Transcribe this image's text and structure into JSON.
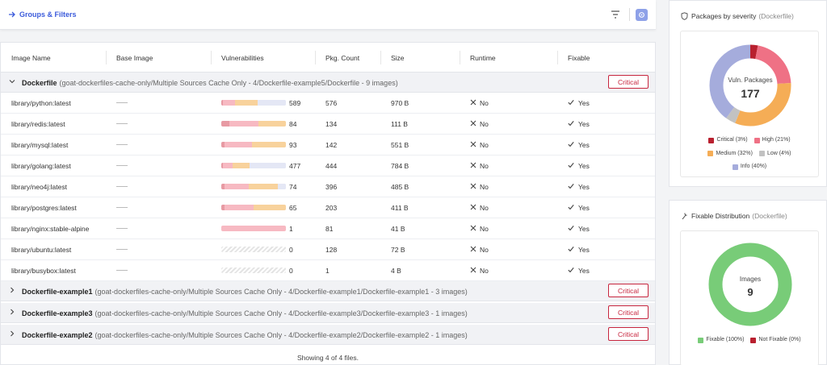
{
  "toolbar": {
    "groups_filters_label": "Groups & Filters"
  },
  "table": {
    "columns": [
      "Image Name",
      "Base Image",
      "Vulnerabilities",
      "Pkg. Count",
      "Size",
      "Runtime",
      "Fixable"
    ],
    "groups": [
      {
        "name": "Dockerfile",
        "path": "(goat-dockerfiles-cache-only/Multiple Sources Cache Only - 4/Dockerfile-example5/Dockerfile - 9 images)",
        "badge": "Critical",
        "expanded": true
      },
      {
        "name": "Dockerfile-example1",
        "path": "(goat-dockerfiles-cache-only/Multiple Sources Cache Only - 4/Dockerfile-example1/Dockerfile-example1 - 3 images)",
        "badge": "Critical",
        "expanded": false
      },
      {
        "name": "Dockerfile-example3",
        "path": "(goat-dockerfiles-cache-only/Multiple Sources Cache Only - 4/Dockerfile-example3/Dockerfile-example3 - 1 images)",
        "badge": "Critical",
        "expanded": false
      },
      {
        "name": "Dockerfile-example2",
        "path": "(goat-dockerfiles-cache-only/Multiple Sources Cache Only - 4/Dockerfile-example2/Dockerfile-example2 - 1 images)",
        "badge": "Critical",
        "expanded": false
      }
    ],
    "rows": [
      {
        "image": "library/python:latest",
        "vulns": "589",
        "pkg": "576",
        "size": "970 B",
        "runtime": "No",
        "fixable": "Yes",
        "bar": [
          0.03,
          0.18,
          0.35,
          0.0,
          0.44
        ]
      },
      {
        "image": "library/redis:latest",
        "vulns": "84",
        "pkg": "134",
        "size": "111 B",
        "runtime": "No",
        "fixable": "Yes",
        "bar": [
          0.12,
          0.45,
          0.43,
          0.0,
          0.0
        ]
      },
      {
        "image": "library/mysql:latest",
        "vulns": "93",
        "pkg": "142",
        "size": "551 B",
        "runtime": "No",
        "fixable": "Yes",
        "bar": [
          0.05,
          0.43,
          0.52,
          0.0,
          0.0
        ]
      },
      {
        "image": "library/golang:latest",
        "vulns": "477",
        "pkg": "444",
        "size": "784 B",
        "runtime": "No",
        "fixable": "Yes",
        "bar": [
          0.03,
          0.14,
          0.27,
          0.0,
          0.56
        ]
      },
      {
        "image": "library/neo4j:latest",
        "vulns": "74",
        "pkg": "396",
        "size": "485 B",
        "runtime": "No",
        "fixable": "Yes",
        "bar": [
          0.05,
          0.38,
          0.45,
          0.0,
          0.12
        ]
      },
      {
        "image": "library/postgres:latest",
        "vulns": "65",
        "pkg": "203",
        "size": "411 B",
        "runtime": "No",
        "fixable": "Yes",
        "bar": [
          0.05,
          0.45,
          0.5,
          0.0,
          0.0
        ]
      },
      {
        "image": "library/nginx:stable-alpine",
        "vulns": "1",
        "pkg": "81",
        "size": "41 B",
        "runtime": "No",
        "fixable": "Yes",
        "bar": [
          0.0,
          1.0,
          0.0,
          0.0,
          0.0
        ]
      },
      {
        "image": "library/ubuntu:latest",
        "vulns": "0",
        "pkg": "128",
        "size": "72 B",
        "runtime": "No",
        "fixable": "Yes",
        "bar": []
      },
      {
        "image": "library/busybox:latest",
        "vulns": "0",
        "pkg": "1",
        "size": "4 B",
        "runtime": "No",
        "fixable": "Yes",
        "bar": []
      }
    ],
    "footer": "Showing 4 of 4 files."
  },
  "severity_panel": {
    "title": "Packages by severity",
    "subtitle": "(Dockerfile)",
    "center_label": "Vuln. Packages",
    "center_value": "177",
    "colors": {
      "critical": "#b9202f",
      "high": "#ef7185",
      "medium": "#f5ad56",
      "low": "#c2c2c2",
      "info": "#a5acdc"
    },
    "legend": [
      "Critical (3%)",
      "High (21%)",
      "Medium (32%)",
      "Low (4%)",
      "Info (40%)"
    ]
  },
  "fixable_panel": {
    "title": "Fixable Distribution",
    "subtitle": "(Dockerfile)",
    "center_label": "Images",
    "center_value": "9",
    "colors": {
      "fixable": "#78cc78",
      "not_fixable": "#b9202f"
    },
    "legend": [
      "Fixable (100%)",
      "Not Fixable (0%)"
    ]
  },
  "chart_data": [
    {
      "type": "pie",
      "title": "Packages by severity",
      "categories": [
        "Critical",
        "High",
        "Medium",
        "Low",
        "Info"
      ],
      "values": [
        3,
        21,
        32,
        4,
        40
      ]
    },
    {
      "type": "pie",
      "title": "Fixable Distribution",
      "categories": [
        "Fixable",
        "Not Fixable"
      ],
      "values": [
        100,
        0
      ]
    }
  ]
}
